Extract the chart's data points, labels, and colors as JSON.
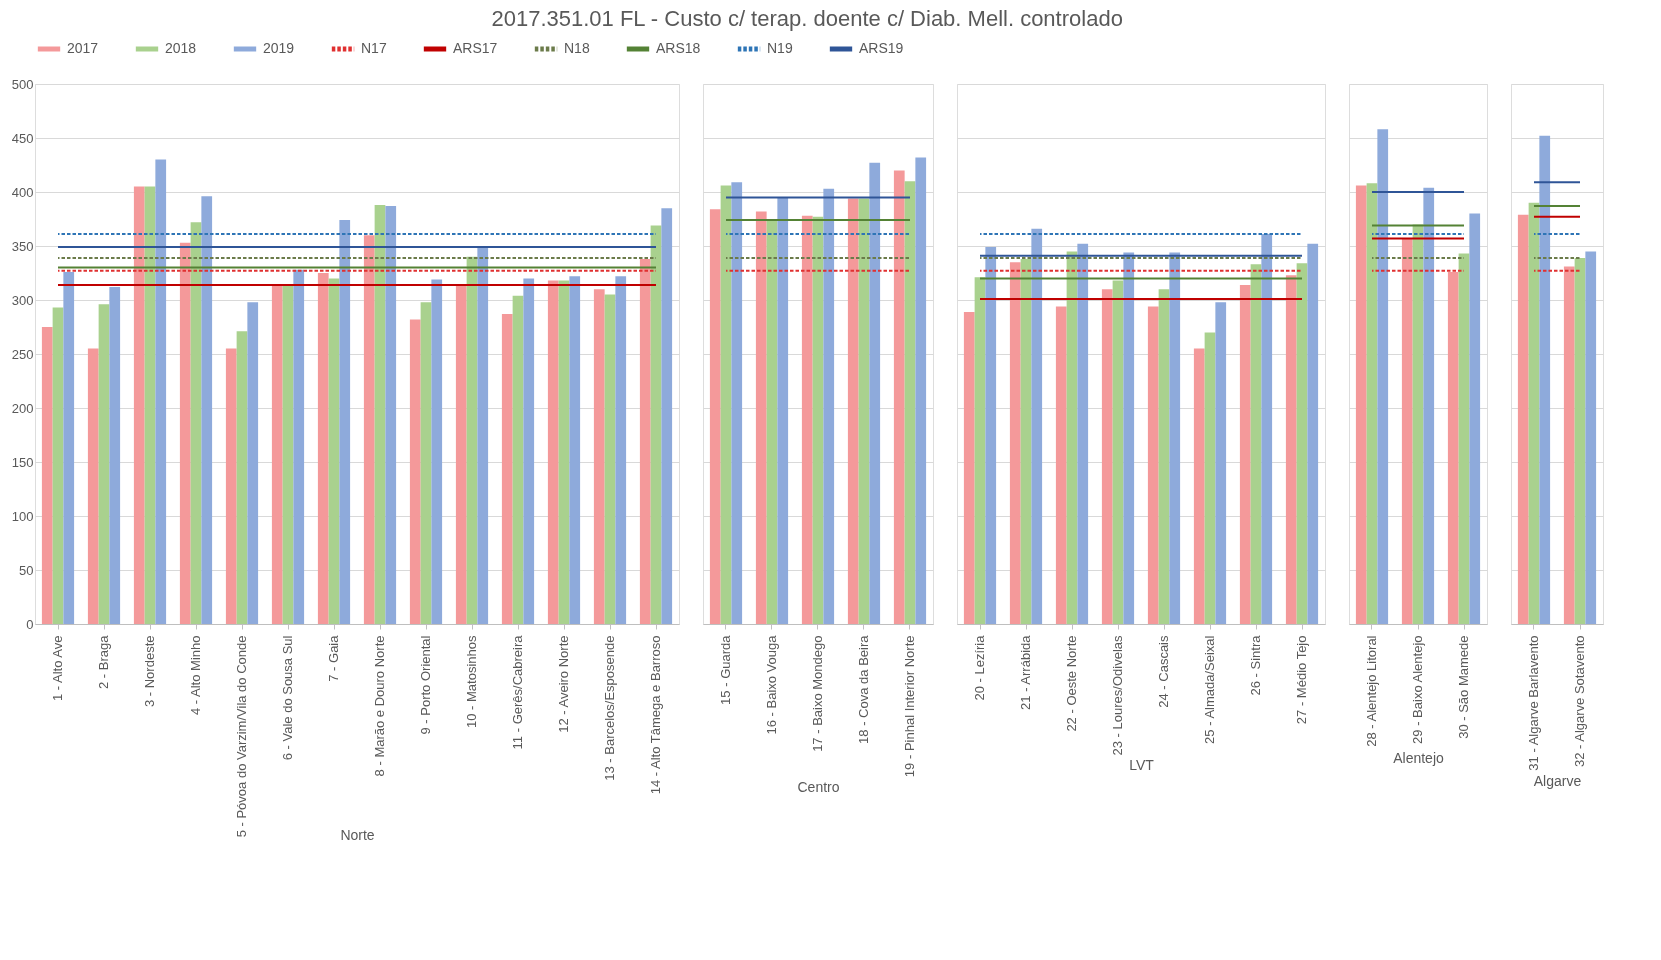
{
  "chart_data": [
    {
      "type": "bar",
      "title": "2017.351.01 FL - Custo c/ terap. doente c/ Diab. Mell. controlado",
      "xlabel": "Norte",
      "legend": "top",
      "grid": "y",
      "ylim": [
        0,
        500
      ],
      "yticks": [
        0,
        50,
        100,
        150,
        200,
        250,
        300,
        350,
        400,
        450,
        500
      ],
      "categories": [
        "1 - Alto Ave",
        "2 - Braga",
        "3 - Nordeste",
        "4 - Alto Minho",
        "5 - Póvoa do Varzim/Vila do Conde",
        "6 - Vale do Sousa Sul",
        "7 - Gaia",
        "8 - Marão e Douro Norte",
        "9 - Porto Oriental",
        "10 - Matosinhos",
        "11 - Gerês/Cabreira",
        "12 - Aveiro Norte",
        "13 - Barcelos/Esposende",
        "14 - Alto Tâmega e Barroso"
      ],
      "series": [
        {
          "name": "2017",
          "color": "#f4999a",
          "values": [
            275,
            255,
            405,
            353,
            255,
            313,
            325,
            360,
            282,
            313,
            287,
            318,
            310,
            338
          ]
        },
        {
          "name": "2018",
          "color": "#a9d18e",
          "values": [
            293,
            296,
            405,
            372,
            271,
            313,
            320,
            388,
            298,
            340,
            304,
            318,
            305,
            369
          ]
        },
        {
          "name": "2019",
          "color": "#8eaadb",
          "values": [
            326,
            312,
            430,
            396,
            298,
            328,
            374,
            387,
            319,
            349,
            320,
            322,
            322,
            385
          ]
        },
        {
          "name": "N17",
          "type": "line",
          "line_style": "dashed",
          "color": "#e03030",
          "values": [
            327,
            327,
            327,
            327,
            327,
            327,
            327,
            327,
            327,
            327,
            327,
            327,
            327,
            327
          ]
        },
        {
          "name": "ARS17",
          "type": "line",
          "line_style": "solid",
          "color": "#c00000",
          "values": [
            314,
            314,
            314,
            314,
            314,
            314,
            314,
            314,
            314,
            314,
            314,
            314,
            314,
            314
          ]
        },
        {
          "name": "N18",
          "type": "line",
          "line_style": "dashed",
          "color": "#6b7b4a",
          "values": [
            339,
            339,
            339,
            339,
            339,
            339,
            339,
            339,
            339,
            339,
            339,
            339,
            339,
            339
          ]
        },
        {
          "name": "ARS18",
          "type": "line",
          "line_style": "solid",
          "color": "#548235",
          "values": [
            330,
            330,
            330,
            330,
            330,
            330,
            330,
            330,
            330,
            330,
            330,
            330,
            330,
            330
          ]
        },
        {
          "name": "N19",
          "type": "line",
          "line_style": "dashed",
          "color": "#2e75b6",
          "values": [
            361,
            361,
            361,
            361,
            361,
            361,
            361,
            361,
            361,
            361,
            361,
            361,
            361,
            361
          ]
        },
        {
          "name": "ARS19",
          "type": "line",
          "line_style": "solid",
          "color": "#2f5597",
          "values": [
            349,
            349,
            349,
            349,
            349,
            349,
            349,
            349,
            349,
            349,
            349,
            349,
            349,
            349
          ]
        }
      ]
    },
    {
      "type": "bar",
      "xlabel": "Centro",
      "grid": "y",
      "tick_labels": "x",
      "ylim": [
        0,
        500
      ],
      "categories": [
        "15 - Guarda",
        "16 - Baixo Vouga",
        "17 - Baixo Mondego",
        "18 - Cova da Beira",
        "19 - Pinhal Interior Norte"
      ],
      "series": [
        {
          "name": "2017",
          "color": "#f4999a",
          "values": [
            384,
            382,
            378,
            394,
            420
          ]
        },
        {
          "name": "2018",
          "color": "#a9d18e",
          "values": [
            406,
            375,
            377,
            394,
            410
          ]
        },
        {
          "name": "2019",
          "color": "#8eaadb",
          "values": [
            409,
            395,
            403,
            427,
            432
          ]
        },
        {
          "name": "N17",
          "type": "line",
          "line_style": "dashed",
          "color": "#e03030",
          "values": [
            327,
            327,
            327,
            327,
            327
          ]
        },
        {
          "name": "ARS17",
          "type": "line",
          "line_style": "solid",
          "color": "#c00000",
          "values": [
            null,
            null,
            null,
            null,
            null
          ]
        },
        {
          "name": "N18",
          "type": "line",
          "line_style": "dashed",
          "color": "#6b7b4a",
          "values": [
            339,
            339,
            339,
            339,
            339
          ]
        },
        {
          "name": "ARS18",
          "type": "line",
          "line_style": "solid",
          "color": "#548235",
          "values": [
            374,
            374,
            374,
            374,
            374
          ]
        },
        {
          "name": "N19",
          "type": "line",
          "line_style": "dashed",
          "color": "#2e75b6",
          "values": [
            361,
            361,
            361,
            361,
            361
          ]
        },
        {
          "name": "ARS19",
          "type": "line",
          "line_style": "solid",
          "color": "#2f5597",
          "values": [
            395,
            395,
            395,
            395,
            395
          ]
        }
      ]
    },
    {
      "type": "bar",
      "xlabel": "LVT",
      "grid": "y",
      "tick_labels": "x",
      "ylim": [
        0,
        500
      ],
      "categories": [
        "20 - Lezíria",
        "21 - Arrábida",
        "22 - Oeste Norte",
        "23 - Loures/Odivelas",
        "24 - Cascais",
        "25 - Almada/Seixal",
        "26 - Sintra",
        "27 - Médio Tejo"
      ],
      "series": [
        {
          "name": "2017",
          "color": "#f4999a",
          "values": [
            289,
            335,
            294,
            310,
            294,
            255,
            314,
            323
          ]
        },
        {
          "name": "2018",
          "color": "#a9d18e",
          "values": [
            321,
            338,
            345,
            318,
            310,
            270,
            333,
            334
          ]
        },
        {
          "name": "2019",
          "color": "#8eaadb",
          "values": [
            349,
            366,
            352,
            344,
            344,
            298,
            361,
            352
          ]
        },
        {
          "name": "N17",
          "type": "line",
          "line_style": "dashed",
          "color": "#e03030",
          "values": [
            327,
            327,
            327,
            327,
            327,
            327,
            327,
            327
          ]
        },
        {
          "name": "ARS17",
          "type": "line",
          "line_style": "solid",
          "color": "#c00000",
          "values": [
            301,
            301,
            301,
            301,
            301,
            301,
            301,
            301
          ]
        },
        {
          "name": "N18",
          "type": "line",
          "line_style": "dashed",
          "color": "#6b7b4a",
          "values": [
            339,
            339,
            339,
            339,
            339,
            339,
            339,
            339
          ]
        },
        {
          "name": "ARS18",
          "type": "line",
          "line_style": "solid",
          "color": "#548235",
          "values": [
            320,
            320,
            320,
            320,
            320,
            320,
            320,
            320
          ]
        },
        {
          "name": "N19",
          "type": "line",
          "line_style": "dashed",
          "color": "#2e75b6",
          "values": [
            361,
            361,
            361,
            361,
            361,
            361,
            361,
            361
          ]
        },
        {
          "name": "ARS19",
          "type": "line",
          "line_style": "solid",
          "color": "#2f5597",
          "values": [
            341,
            341,
            341,
            341,
            341,
            341,
            341,
            341
          ]
        }
      ]
    },
    {
      "type": "bar",
      "xlabel": "Alentejo",
      "grid": "y",
      "tick_labels": "x",
      "ylim": [
        0,
        500
      ],
      "categories": [
        "28 - Alentejo Litoral",
        "29 - Baixo Alentejo",
        "30 - São Mamede"
      ],
      "series": [
        {
          "name": "2017",
          "color": "#f4999a",
          "values": [
            406,
            357,
            326
          ]
        },
        {
          "name": "2018",
          "color": "#a9d18e",
          "values": [
            408,
            370,
            343
          ]
        },
        {
          "name": "2019",
          "color": "#8eaadb",
          "values": [
            458,
            404,
            380
          ]
        },
        {
          "name": "N17",
          "type": "line",
          "line_style": "dashed",
          "color": "#e03030",
          "values": [
            327,
            327,
            327
          ]
        },
        {
          "name": "ARS17",
          "type": "line",
          "line_style": "solid",
          "color": "#c00000",
          "values": [
            357,
            357,
            357
          ]
        },
        {
          "name": "N18",
          "type": "line",
          "line_style": "dashed",
          "color": "#6b7b4a",
          "values": [
            339,
            339,
            339
          ]
        },
        {
          "name": "ARS18",
          "type": "line",
          "line_style": "solid",
          "color": "#548235",
          "values": [
            369,
            369,
            369
          ]
        },
        {
          "name": "N19",
          "type": "line",
          "line_style": "dashed",
          "color": "#2e75b6",
          "values": [
            361,
            361,
            361
          ]
        },
        {
          "name": "ARS19",
          "type": "line",
          "line_style": "solid",
          "color": "#2f5597",
          "values": [
            400,
            400,
            400
          ]
        }
      ]
    },
    {
      "type": "bar",
      "xlabel": "Algarve",
      "grid": "y",
      "tick_labels": "x",
      "ylim": [
        0,
        500
      ],
      "categories": [
        "31 - Algarve Barlavento",
        "32 - Algarve Sotavento"
      ],
      "series": [
        {
          "name": "2017",
          "color": "#f4999a",
          "values": [
            379,
            331
          ]
        },
        {
          "name": "2018",
          "color": "#a9d18e",
          "values": [
            390,
            339
          ]
        },
        {
          "name": "2019",
          "color": "#8eaadb",
          "values": [
            452,
            345
          ]
        },
        {
          "name": "N17",
          "type": "line",
          "line_style": "dashed",
          "color": "#e03030",
          "values": [
            327,
            327
          ]
        },
        {
          "name": "ARS17",
          "type": "line",
          "line_style": "solid",
          "color": "#c00000",
          "values": [
            377,
            377
          ]
        },
        {
          "name": "N18",
          "type": "line",
          "line_style": "dashed",
          "color": "#6b7b4a",
          "values": [
            339,
            339
          ]
        },
        {
          "name": "ARS18",
          "type": "line",
          "line_style": "solid",
          "color": "#548235",
          "values": [
            387,
            387
          ]
        },
        {
          "name": "N19",
          "type": "line",
          "line_style": "dashed",
          "color": "#2e75b6",
          "values": [
            361,
            361
          ]
        },
        {
          "name": "ARS19",
          "type": "line",
          "line_style": "solid",
          "color": "#2f5597",
          "values": [
            409,
            409
          ]
        }
      ]
    }
  ]
}
